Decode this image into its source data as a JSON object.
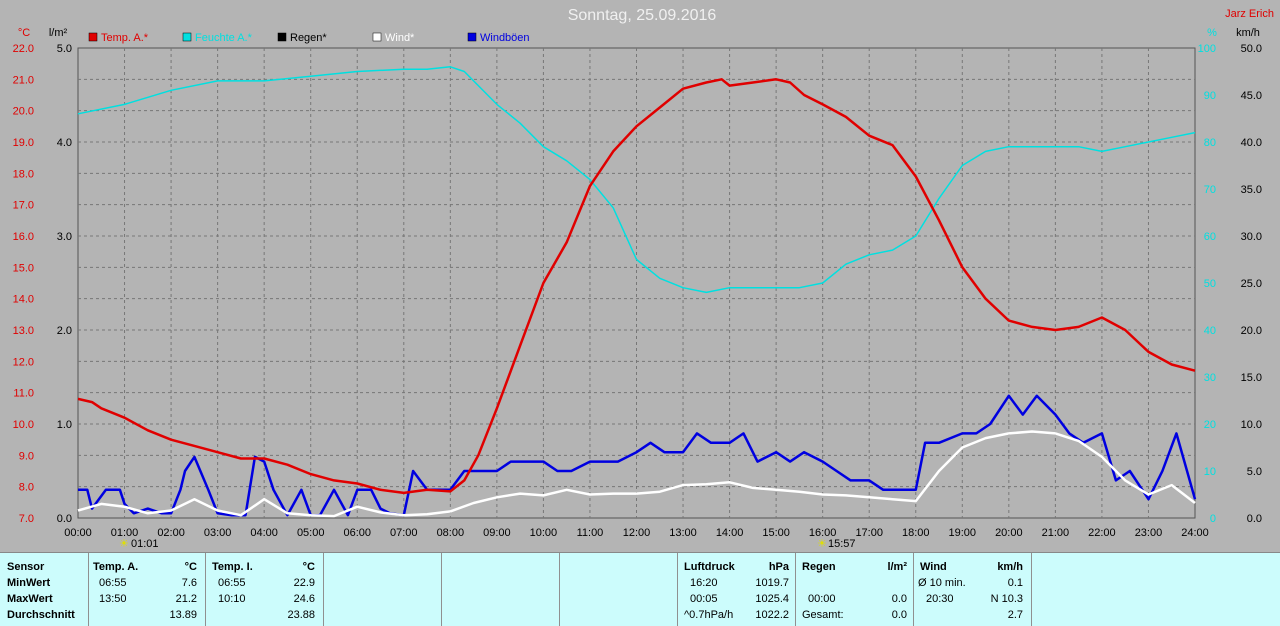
{
  "title": "Sonntag, 25.09.2016",
  "station": "Jarz Erich",
  "legend": [
    {
      "label": "Temp. A.*",
      "color": "#e00000"
    },
    {
      "label": "Feuchte A.*",
      "color": "#00e0e0"
    },
    {
      "label": "Regen*",
      "color": "#000000"
    },
    {
      "label": "Wind*",
      "color": "#ffffff"
    },
    {
      "label": "Windböen",
      "color": "#0000e0"
    }
  ],
  "axis_units": {
    "temp": "°C",
    "rain": "l/m²",
    "humidity": "%",
    "wind": "km/h"
  },
  "time_labels": [
    "00:00",
    "01:00",
    "02:00",
    "03:00",
    "04:00",
    "05:00",
    "06:00",
    "07:00",
    "08:00",
    "09:00",
    "10:00",
    "11:00",
    "12:00",
    "13:00",
    "14:00",
    "15:00",
    "16:00",
    "17:00",
    "18:00",
    "19:00",
    "20:00",
    "21:00",
    "22:00",
    "23:00",
    "24:00"
  ],
  "sunrise": "01:01",
  "sunset": "15:57",
  "chart_data": {
    "type": "line",
    "x_unit": "hours",
    "xlim": [
      0,
      24
    ],
    "axes": {
      "temp": {
        "min": 7.0,
        "max": 22.0,
        "ticks": [
          "7.0",
          "8.0",
          "9.0",
          "10.0",
          "11.0",
          "12.0",
          "13.0",
          "14.0",
          "15.0",
          "16.0",
          "17.0",
          "18.0",
          "19.0",
          "20.0",
          "21.0",
          "22.0"
        ]
      },
      "rain": {
        "min": 0.0,
        "max": 5.0,
        "ticks": [
          "0.0",
          "1.0",
          "2.0",
          "3.0",
          "4.0",
          "5.0"
        ]
      },
      "humidity": {
        "min": 0,
        "max": 100,
        "ticks": [
          "0",
          "10",
          "20",
          "30",
          "40",
          "50",
          "60",
          "70",
          "80",
          "90",
          "100"
        ]
      },
      "wind": {
        "min": 0.0,
        "max": 50.0,
        "ticks": [
          "0.0",
          "5.0",
          "10.0",
          "15.0",
          "20.0",
          "25.0",
          "30.0",
          "35.0",
          "40.0",
          "45.0",
          "50.0"
        ]
      }
    },
    "series": [
      {
        "name": "Temp. A.*",
        "axis": "temp",
        "color": "#e00000",
        "x": [
          0,
          0.3,
          0.5,
          1,
          1.5,
          2,
          2.5,
          3,
          3.5,
          4,
          4.5,
          5,
          5.5,
          6,
          6.5,
          7,
          7.5,
          8,
          8.3,
          8.6,
          9,
          9.5,
          10,
          10.5,
          11,
          11.5,
          12,
          12.5,
          13,
          13.5,
          13.83,
          14,
          14.5,
          15,
          15.3,
          15.6,
          16,
          16.5,
          17,
          17.5,
          18,
          18.5,
          19,
          19.5,
          20,
          20.5,
          21,
          21.5,
          22,
          22.5,
          23,
          23.5,
          24
        ],
        "values": [
          10.8,
          10.7,
          10.5,
          10.2,
          9.8,
          9.5,
          9.3,
          9.1,
          8.9,
          8.9,
          8.7,
          8.4,
          8.2,
          8.1,
          7.9,
          7.8,
          7.9,
          7.85,
          8.2,
          9.0,
          10.5,
          12.5,
          14.5,
          15.8,
          17.6,
          18.7,
          19.5,
          20.1,
          20.7,
          20.9,
          21.0,
          20.8,
          20.9,
          21.0,
          20.9,
          20.5,
          20.2,
          19.8,
          19.2,
          18.9,
          17.9,
          16.5,
          15.0,
          14.0,
          13.3,
          13.1,
          13.0,
          13.1,
          13.4,
          13.0,
          12.3,
          11.9,
          11.7
        ]
      },
      {
        "name": "Feuchte A.*",
        "axis": "humidity",
        "color": "#00e0e0",
        "x": [
          0,
          1,
          2,
          3,
          4,
          5,
          6,
          7,
          7.5,
          8,
          8.3,
          8.6,
          9,
          9.5,
          10,
          10.5,
          11,
          11.5,
          12,
          12.5,
          13,
          13.5,
          14,
          14.5,
          15,
          15.5,
          16,
          16.5,
          17,
          17.5,
          18,
          18.5,
          19,
          19.5,
          20,
          20.5,
          21,
          21.5,
          22,
          22.5,
          23,
          23.5,
          24
        ],
        "values": [
          86,
          88,
          91,
          93,
          93,
          94,
          95,
          95.5,
          95.5,
          96,
          95,
          92,
          88,
          84,
          79,
          76,
          72,
          66,
          55,
          51,
          49,
          48,
          49,
          49,
          49,
          49,
          50,
          54,
          56,
          57,
          60,
          68,
          75,
          78,
          79,
          79,
          79,
          79,
          78,
          79,
          80,
          81,
          82
        ]
      },
      {
        "name": "Wind*",
        "axis": "wind",
        "color": "#ffffff",
        "x": [
          0,
          0.5,
          1,
          1.5,
          2,
          2.5,
          3,
          3.5,
          4,
          4.5,
          5,
          5.5,
          6,
          6.5,
          7,
          7.5,
          8,
          8.5,
          9,
          9.5,
          10,
          10.5,
          11,
          11.5,
          12,
          12.5,
          13,
          13.5,
          14,
          14.5,
          15,
          15.5,
          16,
          16.5,
          17,
          17.5,
          18,
          18.5,
          19,
          19.5,
          20,
          20.5,
          21,
          21.5,
          22,
          22.5,
          23,
          23.5,
          24
        ],
        "values": [
          0.8,
          1.5,
          1.2,
          0.5,
          0.8,
          2.0,
          0.8,
          0.3,
          2.0,
          0.5,
          0.3,
          0.2,
          1.2,
          0.6,
          0.3,
          0.4,
          0.7,
          1.6,
          2.2,
          2.6,
          2.4,
          3.0,
          2.5,
          2.6,
          2.6,
          2.8,
          3.5,
          3.6,
          3.8,
          3.2,
          3.0,
          2.8,
          2.5,
          2.4,
          2.2,
          2.0,
          1.8,
          5.0,
          7.5,
          8.5,
          9.0,
          9.2,
          9.0,
          8.2,
          6.5,
          4.0,
          2.5,
          3.5,
          1.6
        ]
      },
      {
        "name": "Windböen",
        "axis": "wind",
        "color": "#0000e0",
        "x": [
          0,
          0.2,
          0.3,
          0.6,
          0.9,
          1.0,
          1.2,
          1.5,
          1.8,
          2.0,
          2.2,
          2.3,
          2.5,
          2.8,
          3.0,
          3.3,
          3.6,
          3.8,
          4.0,
          4.2,
          4.5,
          4.8,
          5.0,
          5.2,
          5.5,
          5.8,
          6.0,
          6.3,
          6.5,
          6.7,
          7.0,
          7.2,
          7.5,
          7.8,
          8.0,
          8.3,
          8.6,
          9.0,
          9.3,
          9.6,
          10.0,
          10.3,
          10.6,
          11.0,
          11.3,
          11.6,
          12.0,
          12.3,
          12.6,
          13.0,
          13.3,
          13.6,
          14.0,
          14.3,
          14.6,
          15.0,
          15.3,
          15.6,
          16.0,
          16.3,
          16.6,
          17.0,
          17.3,
          17.6,
          18.0,
          18.2,
          18.5,
          19.0,
          19.3,
          19.6,
          20.0,
          20.3,
          20.6,
          21.0,
          21.3,
          21.6,
          22.0,
          22.3,
          22.6,
          23.0,
          23.3,
          23.6,
          24.0
        ],
        "values": [
          3,
          3,
          1,
          3,
          3,
          1.5,
          0.5,
          1,
          0.5,
          0.5,
          3,
          5,
          6.5,
          3,
          0.5,
          0.3,
          0.3,
          6.5,
          6,
          3,
          0.3,
          3,
          0.3,
          0.3,
          3,
          0.3,
          3,
          3,
          1,
          0.5,
          0.3,
          5,
          3,
          3,
          3,
          5,
          5,
          5,
          6,
          6,
          6,
          5,
          5,
          6,
          6,
          6,
          7,
          8,
          7,
          7,
          9,
          8,
          8,
          9,
          6,
          7,
          6,
          7,
          6,
          5,
          4,
          4,
          3,
          3,
          3,
          8,
          8,
          9,
          9,
          10,
          13,
          11,
          13,
          11,
          9,
          8,
          9,
          4,
          5,
          2,
          5,
          9,
          2
        ]
      }
    ]
  },
  "table": {
    "sensor_col": {
      "header": "Sensor",
      "rows": [
        "MinWert",
        "MaxWert",
        "Durchschnitt"
      ]
    },
    "temp_a": {
      "header": "Temp. A.",
      "unit": "°C",
      "rows": [
        [
          "06:55",
          "7.6"
        ],
        [
          "13:50",
          "21.2"
        ],
        [
          "",
          "13.89"
        ]
      ]
    },
    "temp_i": {
      "header": "Temp. I.",
      "unit": "°C",
      "rows": [
        [
          "06:55",
          "22.9"
        ],
        [
          "10:10",
          "24.6"
        ],
        [
          "",
          "23.88"
        ]
      ]
    },
    "pressure": {
      "header": "Luftdruck",
      "unit": "hPa",
      "rows": [
        [
          "16:20",
          "1019.7"
        ],
        [
          "00:05",
          "1025.4"
        ],
        [
          "^0.7hPa/h",
          "1022.2"
        ]
      ]
    },
    "rain": {
      "header": "Regen",
      "unit": "l/m²",
      "rows": [
        [
          "",
          ""
        ],
        [
          "00:00",
          "0.0"
        ],
        [
          "Gesamt:",
          "0.0"
        ]
      ]
    },
    "wind": {
      "header": "Wind",
      "unit": "km/h",
      "rows": [
        [
          "Ø 10 min.",
          "0.1"
        ],
        [
          "20:30",
          "N 10.3"
        ],
        [
          "",
          "2.7"
        ]
      ]
    }
  }
}
